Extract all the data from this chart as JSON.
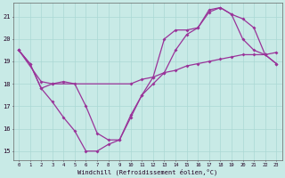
{
  "title": "",
  "xlabel": "Windchill (Refroidissement éolien,°C)",
  "background_color": "#c8eae6",
  "grid_color": "#aad8d4",
  "line_color": "#993399",
  "xlim": [
    -0.5,
    23.5
  ],
  "ylim": [
    14.6,
    21.6
  ],
  "xticks": [
    0,
    1,
    2,
    3,
    4,
    5,
    6,
    7,
    8,
    9,
    10,
    11,
    12,
    13,
    14,
    15,
    16,
    17,
    18,
    19,
    20,
    21,
    22,
    23
  ],
  "yticks": [
    15,
    16,
    17,
    18,
    19,
    20,
    21
  ],
  "line1_x": [
    0,
    1,
    2,
    3,
    4,
    5,
    6,
    7,
    8,
    9,
    10,
    11,
    12,
    13,
    14,
    15,
    16,
    17,
    18,
    19,
    20,
    21,
    22,
    23
  ],
  "line1_y": [
    19.5,
    18.9,
    17.8,
    17.2,
    16.5,
    15.9,
    15.0,
    15.0,
    15.3,
    15.5,
    16.5,
    17.5,
    18.3,
    20.0,
    20.4,
    20.4,
    20.5,
    21.3,
    21.4,
    21.1,
    20.9,
    20.5,
    19.3,
    19.4
  ],
  "line2_x": [
    0,
    2,
    3,
    10,
    11,
    12,
    13,
    14,
    15,
    16,
    17,
    18,
    19,
    20,
    21,
    22,
    23
  ],
  "line2_y": [
    19.5,
    18.1,
    18.0,
    18.0,
    18.2,
    18.3,
    18.5,
    18.6,
    18.8,
    18.9,
    19.0,
    19.1,
    19.2,
    19.3,
    19.3,
    19.3,
    18.9
  ],
  "line3_x": [
    0,
    1,
    2,
    3,
    4,
    5,
    6,
    7,
    8,
    9,
    10,
    11,
    12,
    13,
    14,
    15,
    16,
    17,
    18,
    19,
    20,
    21,
    22,
    23
  ],
  "line3_y": [
    19.5,
    18.9,
    17.8,
    18.0,
    18.1,
    18.0,
    17.0,
    15.8,
    15.5,
    15.5,
    16.6,
    17.5,
    18.0,
    18.5,
    19.5,
    20.2,
    20.5,
    21.2,
    21.4,
    21.1,
    20.0,
    19.5,
    19.3,
    18.9
  ]
}
